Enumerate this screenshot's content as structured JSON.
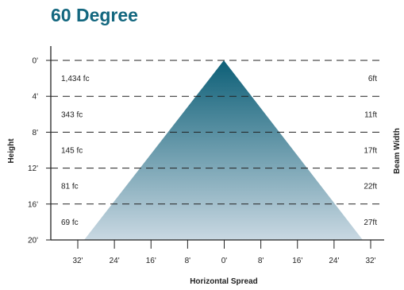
{
  "title": "60 Degree",
  "chart_data": {
    "type": "beam-spread",
    "beam_angle": "60 Degree",
    "ylabel": "Height",
    "xlabel": "Horizontal Spread",
    "right_label": "Beam Width",
    "y_ticks": [
      "0'",
      "4'",
      "8'",
      "12'",
      "16'",
      "20'"
    ],
    "x_ticks": [
      "32'",
      "24'",
      "16'",
      "8'",
      "0'",
      "8'",
      "16'",
      "24'",
      "32'"
    ],
    "rows": [
      {
        "illuminance": "1,434 fc",
        "beam_width": "6ft"
      },
      {
        "illuminance": "343 fc",
        "beam_width": "11ft"
      },
      {
        "illuminance": "145 fc",
        "beam_width": "17ft"
      },
      {
        "illuminance": "81 fc",
        "beam_width": "22ft"
      },
      {
        "illuminance": "69 fc",
        "beam_width": "27ft"
      }
    ],
    "beam_color_top": "#0d5f77",
    "beam_color_bottom": "#c9d8e2"
  }
}
